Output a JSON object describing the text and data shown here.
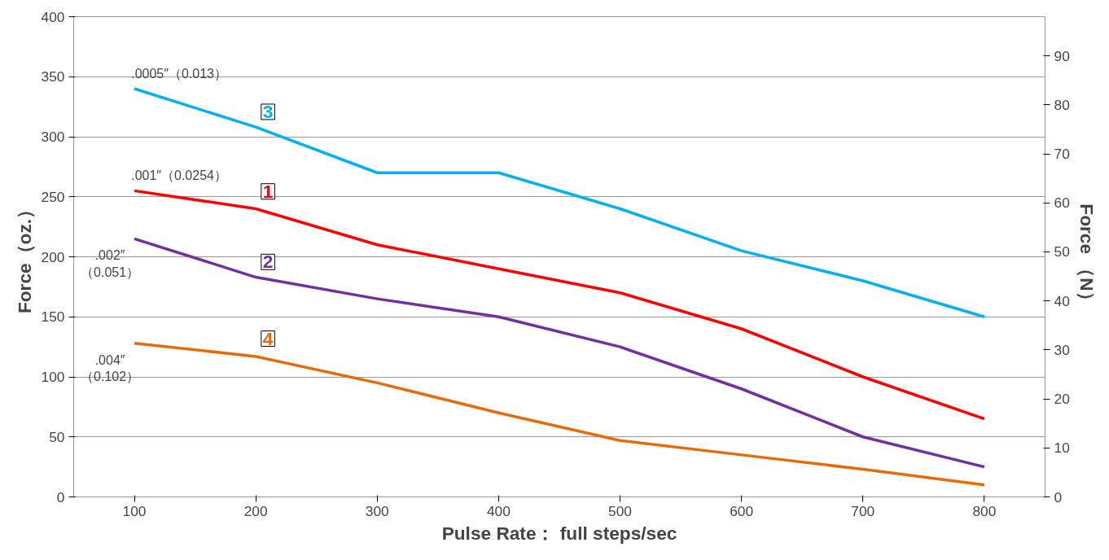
{
  "chart_data": {
    "type": "line",
    "xlabel": "Pulse Rate： full steps/sec",
    "ylabel": "Force（oz.）",
    "y2label": "Force （N）",
    "x": [
      100,
      200,
      300,
      400,
      500,
      600,
      700,
      800
    ],
    "xlim": [
      50,
      850
    ],
    "xticks": [
      100,
      200,
      300,
      400,
      500,
      600,
      700,
      800
    ],
    "ylim": [
      0,
      400
    ],
    "yticks": [
      0,
      50,
      100,
      150,
      200,
      250,
      300,
      350,
      400
    ],
    "y2lim": [
      0,
      98
    ],
    "y2ticks": [
      0,
      10,
      20,
      30,
      40,
      50,
      60,
      70,
      80,
      90
    ],
    "grid": "y",
    "marker": "none",
    "line_style": "solid",
    "series": [
      {
        "name": "3",
        "color": "#00b0f0",
        "values": [
          340,
          308,
          270,
          270,
          240,
          205,
          180,
          150
        ]
      },
      {
        "name": "1",
        "color": "#ff0000",
        "values": [
          255,
          240,
          210,
          190,
          170,
          140,
          100,
          65
        ]
      },
      {
        "name": "2",
        "color": "#7030a0",
        "values": [
          215,
          183,
          165,
          150,
          125,
          90,
          50,
          25
        ]
      },
      {
        "name": "4",
        "color": "#e46c0a",
        "values": [
          128,
          117,
          95,
          70,
          47,
          35,
          23,
          10
        ]
      }
    ],
    "annotations": [
      ".0005″（0.013）",
      ".001″（0.0254）",
      ".002″\n（0.051）",
      ".004″\n（0.102）"
    ]
  }
}
